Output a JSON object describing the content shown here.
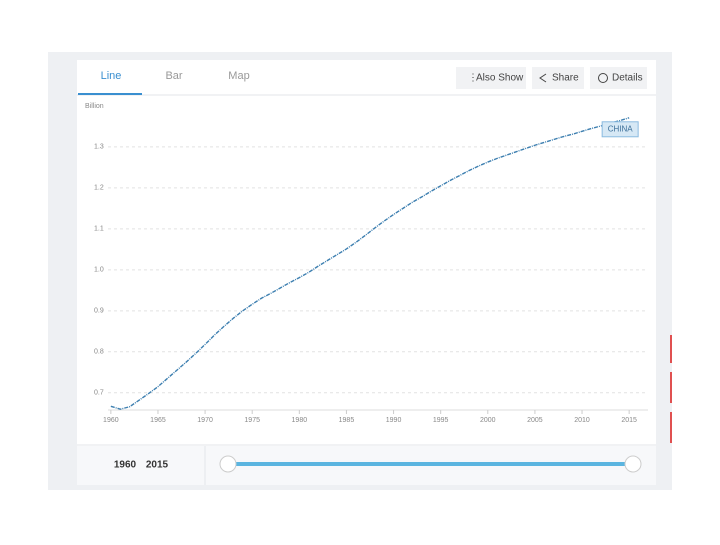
{
  "tabs": [
    "Line",
    "Bar",
    "Map"
  ],
  "buttons": [
    "Also Show",
    "Share",
    "Details"
  ],
  "range": {
    "start": "1960",
    "end": "2015"
  },
  "chart_data": {
    "type": "line",
    "y_label": "Billion",
    "x": [
      1960,
      1961,
      1962,
      1963,
      1964,
      1965,
      1966,
      1967,
      1968,
      1969,
      1970,
      1971,
      1972,
      1973,
      1974,
      1975,
      1976,
      1977,
      1978,
      1979,
      1980,
      1981,
      1982,
      1983,
      1984,
      1985,
      1986,
      1987,
      1988,
      1989,
      1990,
      1991,
      1992,
      1993,
      1994,
      1995,
      1996,
      1997,
      1998,
      1999,
      2000,
      2001,
      2002,
      2003,
      2004,
      2005,
      2006,
      2007,
      2008,
      2009,
      2010,
      2011,
      2012,
      2013,
      2014,
      2015
    ],
    "series": [
      {
        "name": "CHINA",
        "color": "#3d7fb0",
        "values": [
          0.667,
          0.66,
          0.666,
          0.682,
          0.698,
          0.715,
          0.735,
          0.755,
          0.775,
          0.796,
          0.818,
          0.841,
          0.862,
          0.882,
          0.9,
          0.916,
          0.931,
          0.943,
          0.956,
          0.969,
          0.981,
          0.994,
          1.009,
          1.023,
          1.037,
          1.051,
          1.067,
          1.084,
          1.102,
          1.119,
          1.135,
          1.15,
          1.165,
          1.178,
          1.192,
          1.205,
          1.218,
          1.23,
          1.242,
          1.253,
          1.263,
          1.272,
          1.28,
          1.288,
          1.296,
          1.304,
          1.311,
          1.318,
          1.325,
          1.331,
          1.338,
          1.345,
          1.351,
          1.358,
          1.364,
          1.371
        ]
      }
    ],
    "xlim": [
      1958,
      2017
    ],
    "xticks": [
      1960,
      1965,
      1970,
      1975,
      1980,
      1985,
      1990,
      1995,
      2000,
      2005,
      2010,
      2015
    ],
    "ylim": [
      0.658,
      1.39
    ],
    "yticks": [
      0.7,
      0.8,
      0.9,
      {
        "value": 1,
        "label": "1.0"
      },
      1.1,
      1.2,
      1.3
    ],
    "grid": true
  }
}
